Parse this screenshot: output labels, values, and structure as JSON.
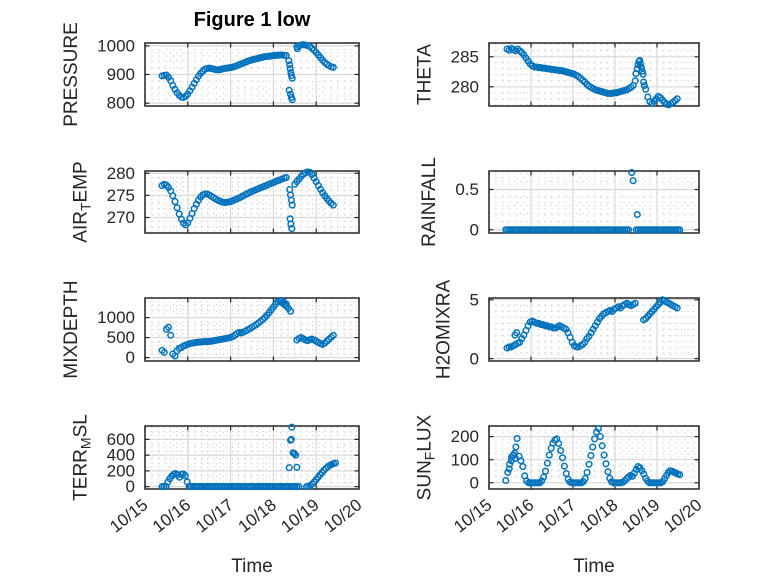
{
  "title": "Figure 1 low",
  "x_axis": {
    "label": "Time",
    "tick_labels": [
      "10/15",
      "10/16",
      "10/17",
      "10/18",
      "10/19",
      "10/20"
    ],
    "range_days": [
      0,
      5
    ],
    "minor_divisions": 6
  },
  "colors": {
    "marker": "#0072BD",
    "axis": "#262626",
    "grid_major": "#d9d9d9",
    "grid_minor": "#c6c6c6",
    "title": "#000000",
    "background": "#ffffff"
  },
  "marker": {
    "shape": "open-circle",
    "radius": 2.8,
    "stroke_width": 1.5
  },
  "chart_data": [
    {
      "type": "scatter",
      "id": "pressure",
      "ylabel_pre": "PRESSURE",
      "ylabel_sub": "",
      "ylabel_post": "",
      "yticks": [
        800,
        900,
        1000
      ],
      "ytick_labels": [
        "800",
        "900",
        "1000"
      ],
      "ylim": [
        790,
        1010
      ],
      "yminor": 25,
      "series": {
        "start": 0.4,
        "step": 0.05,
        "values": [
          895,
          897,
          898,
          890,
          878,
          862,
          848,
          836,
          827,
          821,
          820,
          824,
          832,
          843,
          856,
          869,
          882,
          894,
          904,
          912,
          918,
          921,
          922,
          921,
          919,
          917,
          916,
          917,
          919,
          921,
          922,
          923,
          924,
          926,
          928,
          931,
          934,
          937,
          940,
          943,
          946,
          949,
          951,
          953,
          955,
          957,
          959,
          960,
          962,
          963,
          964,
          965,
          966,
          967,
          967,
          968,
          968,
          967,
          966,
          null,
          null,
          null,
          null,
          997,
          1001,
          1003,
          1004,
          1003,
          1001,
          998,
          992,
          985,
          977,
          968,
          959,
          950,
          942,
          936,
          931,
          927,
          925
        ]
      },
      "extra_points": [
        [
          3.36,
          948
        ],
        [
          3.38,
          934
        ],
        [
          3.39,
          921
        ],
        [
          3.41,
          907
        ],
        [
          3.42,
          896
        ],
        [
          3.44,
          887
        ],
        [
          3.37,
          845
        ],
        [
          3.4,
          831
        ],
        [
          3.42,
          820
        ],
        [
          3.44,
          812
        ],
        [
          3.56,
          990
        ]
      ]
    },
    {
      "type": "scatter",
      "id": "air-temp",
      "ylabel_pre": "AIR",
      "ylabel_sub": "T",
      "ylabel_post": "EMP",
      "yticks": [
        270,
        275,
        280
      ],
      "ytick_labels": [
        "270",
        "275",
        "280"
      ],
      "ylim": [
        266.5,
        280.5
      ],
      "yminor": 1,
      "series": {
        "start": 0.4,
        "step": 0.05,
        "values": [
          277.2,
          277.5,
          277.3,
          276.8,
          276.0,
          274.9,
          273.6,
          272.2,
          270.8,
          269.6,
          268.7,
          268.3,
          268.8,
          269.8,
          270.9,
          272.0,
          273.0,
          273.9,
          274.6,
          275.1,
          275.3,
          275.3,
          275.1,
          274.8,
          274.5,
          274.2,
          273.9,
          273.7,
          273.5,
          273.4,
          273.4,
          273.5,
          273.6,
          273.8,
          274.0,
          274.2,
          274.4,
          274.7,
          274.9,
          275.2,
          275.4,
          275.7,
          275.9,
          276.1,
          276.3,
          276.5,
          276.7,
          276.9,
          277.1,
          277.3,
          277.5,
          277.7,
          277.9,
          278.1,
          278.3,
          278.5,
          278.7,
          278.9,
          279.0,
          null,
          null,
          null,
          277.5,
          278.1,
          278.7,
          279.3,
          279.8,
          280.1,
          280.3,
          280.2,
          279.7,
          278.9,
          278.1,
          277.2,
          276.4,
          275.6,
          274.9,
          274.3,
          273.7,
          273.2,
          272.8
        ]
      },
      "extra_points": [
        [
          3.38,
          276.3
        ],
        [
          3.4,
          275.1
        ],
        [
          3.42,
          273.9
        ],
        [
          3.44,
          272.8
        ],
        [
          3.39,
          269.7
        ],
        [
          3.41,
          268.5
        ],
        [
          3.43,
          267.5
        ]
      ]
    },
    {
      "type": "scatter",
      "id": "mixdepth",
      "ylabel_pre": "MIXDEPTH",
      "ylabel_sub": "",
      "ylabel_post": "",
      "yticks": [
        0,
        500,
        1000
      ],
      "ytick_labels": [
        "0",
        "500",
        "1000"
      ],
      "ylim": [
        -85,
        1490
      ],
      "yminor": 100,
      "series": {
        "start": 0.4,
        "step": 0.05,
        "values": [
          180,
          130,
          710,
          760,
          560,
          90,
          40,
          170,
          230,
          250,
          290,
          310,
          330,
          350,
          360,
          370,
          380,
          385,
          390,
          395,
          400,
          400,
          405,
          410,
          420,
          430,
          440,
          450,
          460,
          470,
          480,
          490,
          505,
          525,
          560,
          600,
          630,
          615,
          640,
          665,
          695,
          725,
          755,
          790,
          825,
          865,
          905,
          950,
          1000,
          1060,
          1125,
          1195,
          1265,
          1335,
          1400,
          1420,
          1370,
          1330,
          1290,
          1230,
          1160,
          null,
          null,
          440,
          480,
          500,
          470,
          440,
          425,
          445,
          465,
          440,
          410,
          380,
          350,
          330,
          365,
          410,
          460,
          510,
          555
        ]
      },
      "extra_points": [
        [
          3.18,
          1430
        ],
        [
          3.24,
          1390
        ],
        [
          3.3,
          1340
        ]
      ]
    },
    {
      "type": "scatter",
      "id": "terr-msl",
      "ylabel_pre": "TERR",
      "ylabel_sub": "M",
      "ylabel_post": "SL",
      "yticks": [
        0,
        200,
        400,
        600
      ],
      "ytick_labels": [
        "0",
        "200",
        "400",
        "600"
      ],
      "ylim": [
        -30,
        770
      ],
      "yminor": 50,
      "series": {
        "start": 0.4,
        "step": 0.045,
        "values": [
          0,
          0,
          0,
          60,
          100,
          135,
          155,
          165,
          150,
          120,
          155,
          160,
          140,
          60,
          0,
          0,
          0,
          0,
          0,
          0,
          0,
          0,
          0,
          0,
          0,
          0,
          0,
          0,
          0,
          0,
          0,
          0,
          0,
          0,
          0,
          0,
          0,
          0,
          0,
          0,
          0,
          0,
          0,
          0,
          0,
          0,
          0,
          0,
          0,
          0,
          0,
          0,
          0,
          0,
          0,
          0,
          0,
          0,
          0,
          0,
          0,
          0,
          0,
          0,
          0,
          0,
          0,
          0,
          0,
          0,
          0,
          0,
          null,
          null,
          null,
          0,
          5,
          15,
          35,
          60,
          90,
          120,
          150,
          180,
          208,
          232,
          253,
          270,
          283,
          293,
          300
        ]
      },
      "extra_points": [
        [
          3.37,
          240
        ],
        [
          3.4,
          590
        ],
        [
          3.42,
          600
        ],
        [
          3.43,
          755
        ],
        [
          3.46,
          430
        ],
        [
          3.49,
          420
        ],
        [
          3.52,
          400
        ],
        [
          3.55,
          245
        ]
      ]
    },
    {
      "type": "scatter",
      "id": "theta",
      "ylabel_pre": "THETA",
      "ylabel_sub": "",
      "ylabel_post": "",
      "yticks": [
        280,
        285
      ],
      "ytick_labels": [
        "280",
        "285"
      ],
      "ylim": [
        276.8,
        287.3
      ],
      "yminor": 1,
      "series": {
        "start": 0.43,
        "step": 0.05,
        "values": [
          286.3,
          286.1,
          286.4,
          286.2,
          286.0,
          286.3,
          286.0,
          285.7,
          285.3,
          284.8,
          284.3,
          283.8,
          283.5,
          283.3,
          283.3,
          283.2,
          283.2,
          283.1,
          283.1,
          283.0,
          283.0,
          282.9,
          282.9,
          282.8,
          282.8,
          282.7,
          282.7,
          282.6,
          282.5,
          282.4,
          282.3,
          282.2,
          282.1,
          281.9,
          281.7,
          281.4,
          281.1,
          280.8,
          280.4,
          280.1,
          279.9,
          279.7,
          279.5,
          279.4,
          279.3,
          279.2,
          279.1,
          279.0,
          278.9,
          278.9,
          278.9,
          279.0,
          279.0,
          279.1,
          279.2,
          279.3,
          279.4,
          279.5,
          279.7,
          279.9,
          280.2,
          281.0,
          null,
          null,
          null,
          280.8,
          279.6,
          278.3,
          277.5,
          277.2,
          277.6,
          278.0,
          278.4,
          278.2,
          277.8,
          277.4,
          277.1,
          277.0,
          277.2,
          277.4,
          277.7,
          278.0
        ]
      },
      "extra_points": [
        [
          3.5,
          282.2
        ],
        [
          3.53,
          283.0
        ],
        [
          3.55,
          283.7
        ],
        [
          3.57,
          284.2
        ],
        [
          3.59,
          284.4
        ],
        [
          3.61,
          283.8
        ],
        [
          3.63,
          283.2
        ],
        [
          3.65,
          282.6
        ],
        [
          3.67,
          282.1
        ],
        [
          3.7,
          280.2
        ]
      ]
    },
    {
      "type": "scatter",
      "id": "rainfall",
      "ylabel_pre": "RAINFALL",
      "ylabel_sub": "",
      "ylabel_post": "",
      "yticks": [
        0,
        0.5
      ],
      "ytick_labels": [
        "0",
        "0.5"
      ],
      "ylim": [
        -0.04,
        0.73
      ],
      "yminor": 0.1,
      "series": {
        "start": 0.4,
        "step": 0.045,
        "values": [
          0,
          0,
          0,
          0,
          0,
          0,
          0,
          0,
          0,
          0,
          0,
          0,
          0,
          0,
          0,
          0,
          0,
          0,
          0,
          0,
          0,
          0,
          0,
          0,
          0,
          0,
          0,
          0,
          0,
          0,
          0,
          0,
          0,
          0,
          0,
          0,
          0,
          0,
          0,
          0,
          0,
          0,
          0,
          0,
          0,
          0,
          0,
          0,
          0,
          0,
          0,
          0,
          0,
          0,
          0,
          0,
          0,
          0,
          0,
          0,
          0,
          0,
          0,
          0,
          0,
          0,
          null,
          null,
          null,
          0,
          0,
          0,
          0,
          0,
          0,
          0,
          0,
          0,
          0,
          0,
          0,
          0,
          0,
          0,
          0,
          0,
          0,
          0,
          0,
          0,
          0,
          0,
          0
        ]
      },
      "extra_points": [
        [
          3.4,
          0.71
        ],
        [
          3.43,
          0.61
        ],
        [
          3.53,
          0.19
        ]
      ]
    },
    {
      "type": "scatter",
      "id": "h2omixra",
      "ylabel_pre": "H2OMIXRA",
      "ylabel_sub": "",
      "ylabel_post": "",
      "yticks": [
        0,
        5
      ],
      "ytick_labels": [
        "0",
        "5"
      ],
      "ylim": [
        -0.2,
        5.15
      ],
      "yminor": 0.5,
      "series": {
        "start": 0.43,
        "step": 0.05,
        "values": [
          0.9,
          1.0,
          1.0,
          1.1,
          1.2,
          1.3,
          1.4,
          1.7,
          2.0,
          2.4,
          2.8,
          3.1,
          3.2,
          3.1,
          3.0,
          3.0,
          2.9,
          2.9,
          2.8,
          2.8,
          2.7,
          2.7,
          2.6,
          2.6,
          2.7,
          2.8,
          2.7,
          2.6,
          2.5,
          2.2,
          1.8,
          1.4,
          1.1,
          1.0,
          1.0,
          1.1,
          1.2,
          1.4,
          1.7,
          1.9,
          2.2,
          2.5,
          2.8,
          3.1,
          3.4,
          3.6,
          3.8,
          3.9,
          4.0,
          4.1,
          4.0,
          4.2,
          4.3,
          4.4,
          4.3,
          4.5,
          4.6,
          4.7,
          4.6,
          4.5,
          4.6,
          4.7,
          null,
          null,
          null,
          3.3,
          3.4,
          3.6,
          3.8,
          4.0,
          4.2,
          4.4,
          4.6,
          4.8,
          5.0,
          4.9,
          4.8,
          4.7,
          4.6,
          4.5,
          4.4,
          4.3
        ]
      },
      "extra_points": [
        [
          0.62,
          2.0
        ],
        [
          0.66,
          2.2
        ]
      ]
    },
    {
      "type": "scatter",
      "id": "sun-flux",
      "ylabel_pre": "SUN",
      "ylabel_sub": "F",
      "ylabel_post": "LUX",
      "yticks": [
        0,
        100,
        200
      ],
      "ytick_labels": [
        "0",
        "100",
        "200"
      ],
      "ylim": [
        -27,
        246
      ],
      "yminor": 25,
      "series": {
        "start": 0.4,
        "step": 0.045,
        "values": [
          10,
          45,
          80,
          110,
          120,
          105,
          192,
          115,
          95,
          70,
          30,
          8,
          0,
          0,
          0,
          0,
          0,
          0,
          0,
          8,
          25,
          50,
          85,
          120,
          150,
          172,
          185,
          190,
          170,
          140,
          108,
          72,
          40,
          15,
          3,
          0,
          0,
          0,
          0,
          0,
          0,
          5,
          18,
          45,
          80,
          118,
          155,
          190,
          220,
          235,
          200,
          160,
          120,
          82,
          48,
          20,
          4,
          0,
          0,
          0,
          0,
          0,
          3,
          10,
          18,
          25,
          32,
          28,
          42,
          58,
          70,
          65,
          52,
          38,
          20,
          8,
          0,
          0,
          0,
          0,
          0,
          0,
          0,
          5,
          18,
          32,
          45,
          52,
          50,
          46,
          42,
          38,
          35
        ]
      },
      "extra_points": [
        [
          0.48,
          60
        ],
        [
          0.53,
          95
        ],
        [
          0.57,
          118
        ],
        [
          0.61,
          128
        ],
        [
          0.64,
          155
        ]
      ]
    }
  ]
}
